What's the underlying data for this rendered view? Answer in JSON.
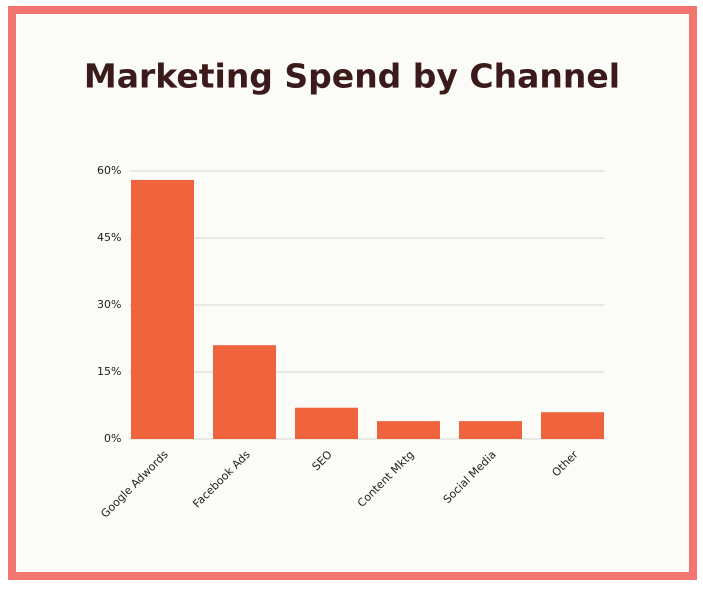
{
  "chart_data": {
    "type": "bar",
    "title": "Marketing Spend by Channel",
    "categories": [
      "Google Adwords",
      "Facebook Ads",
      "SEO",
      "Content Mktg",
      "Social Media",
      "Other"
    ],
    "values": [
      58,
      21,
      7,
      4,
      4,
      6
    ],
    "color": "#ef633d",
    "ylim": [
      0,
      60
    ],
    "yticks": [
      {
        "value": 0,
        "label": "0%"
      },
      {
        "value": 15,
        "label": "15%"
      },
      {
        "value": 30,
        "label": "30%"
      },
      {
        "value": 45,
        "label": "45%"
      },
      {
        "value": 60,
        "label": "60%"
      }
    ],
    "grid": true
  }
}
